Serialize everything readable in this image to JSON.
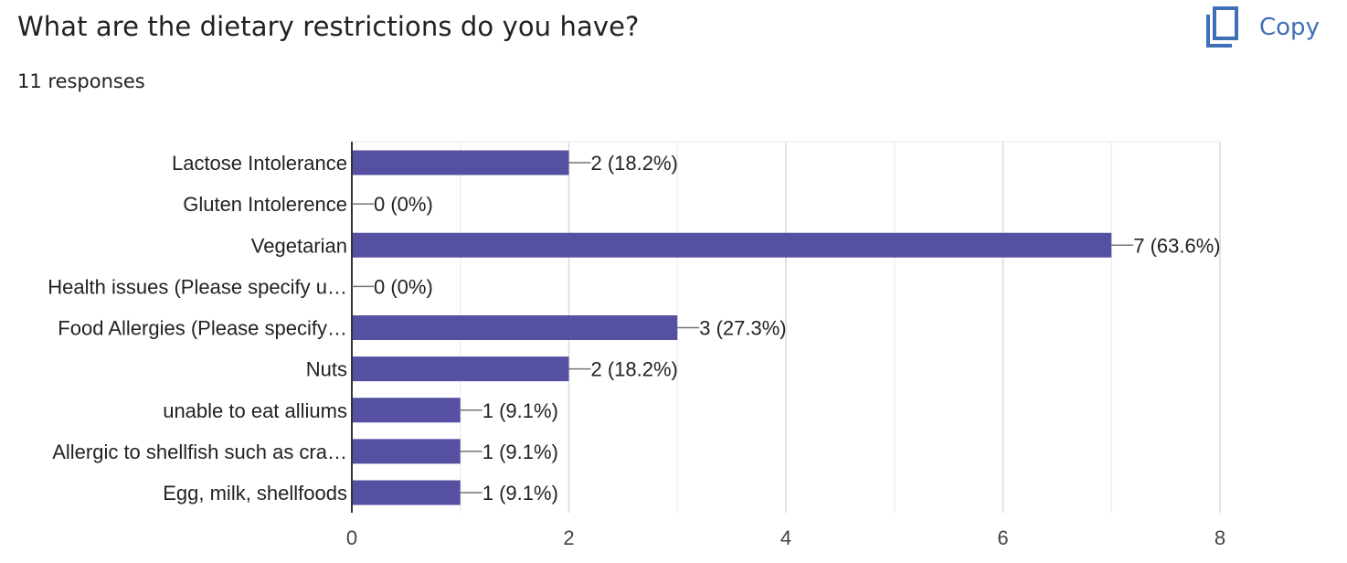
{
  "question": {
    "title": "What are the dietary restrictions do you have?",
    "responses_label": "11 responses"
  },
  "copy_button": {
    "label": "Copy",
    "icon": "copy-icon",
    "color": "#3f6fb5"
  },
  "chart_data": {
    "type": "bar",
    "orientation": "horizontal",
    "categories": [
      "Lactose Intolerance",
      "Gluten Intolerence",
      "Vegetarian",
      "Health issues (Please specify u…",
      "Food Allergies (Please specify…",
      "Nuts",
      "unable to eat alliums",
      "Allergic to shellfish such as cra…",
      "Egg, milk, shellfoods"
    ],
    "values": [
      2,
      0,
      7,
      0,
      3,
      2,
      1,
      1,
      1
    ],
    "data_labels": [
      "2 (18.2%)",
      "0 (0%)",
      "7 (63.6%)",
      "0 (0%)",
      "3 (27.3%)",
      "2 (18.2%)",
      "1 (9.1%)",
      "1 (9.1%)",
      "1 (9.1%)"
    ],
    "xlim": [
      0,
      8
    ],
    "x_ticks": [
      0,
      2,
      4,
      6,
      8
    ],
    "grid": true,
    "bar_color": "#5550a2"
  }
}
